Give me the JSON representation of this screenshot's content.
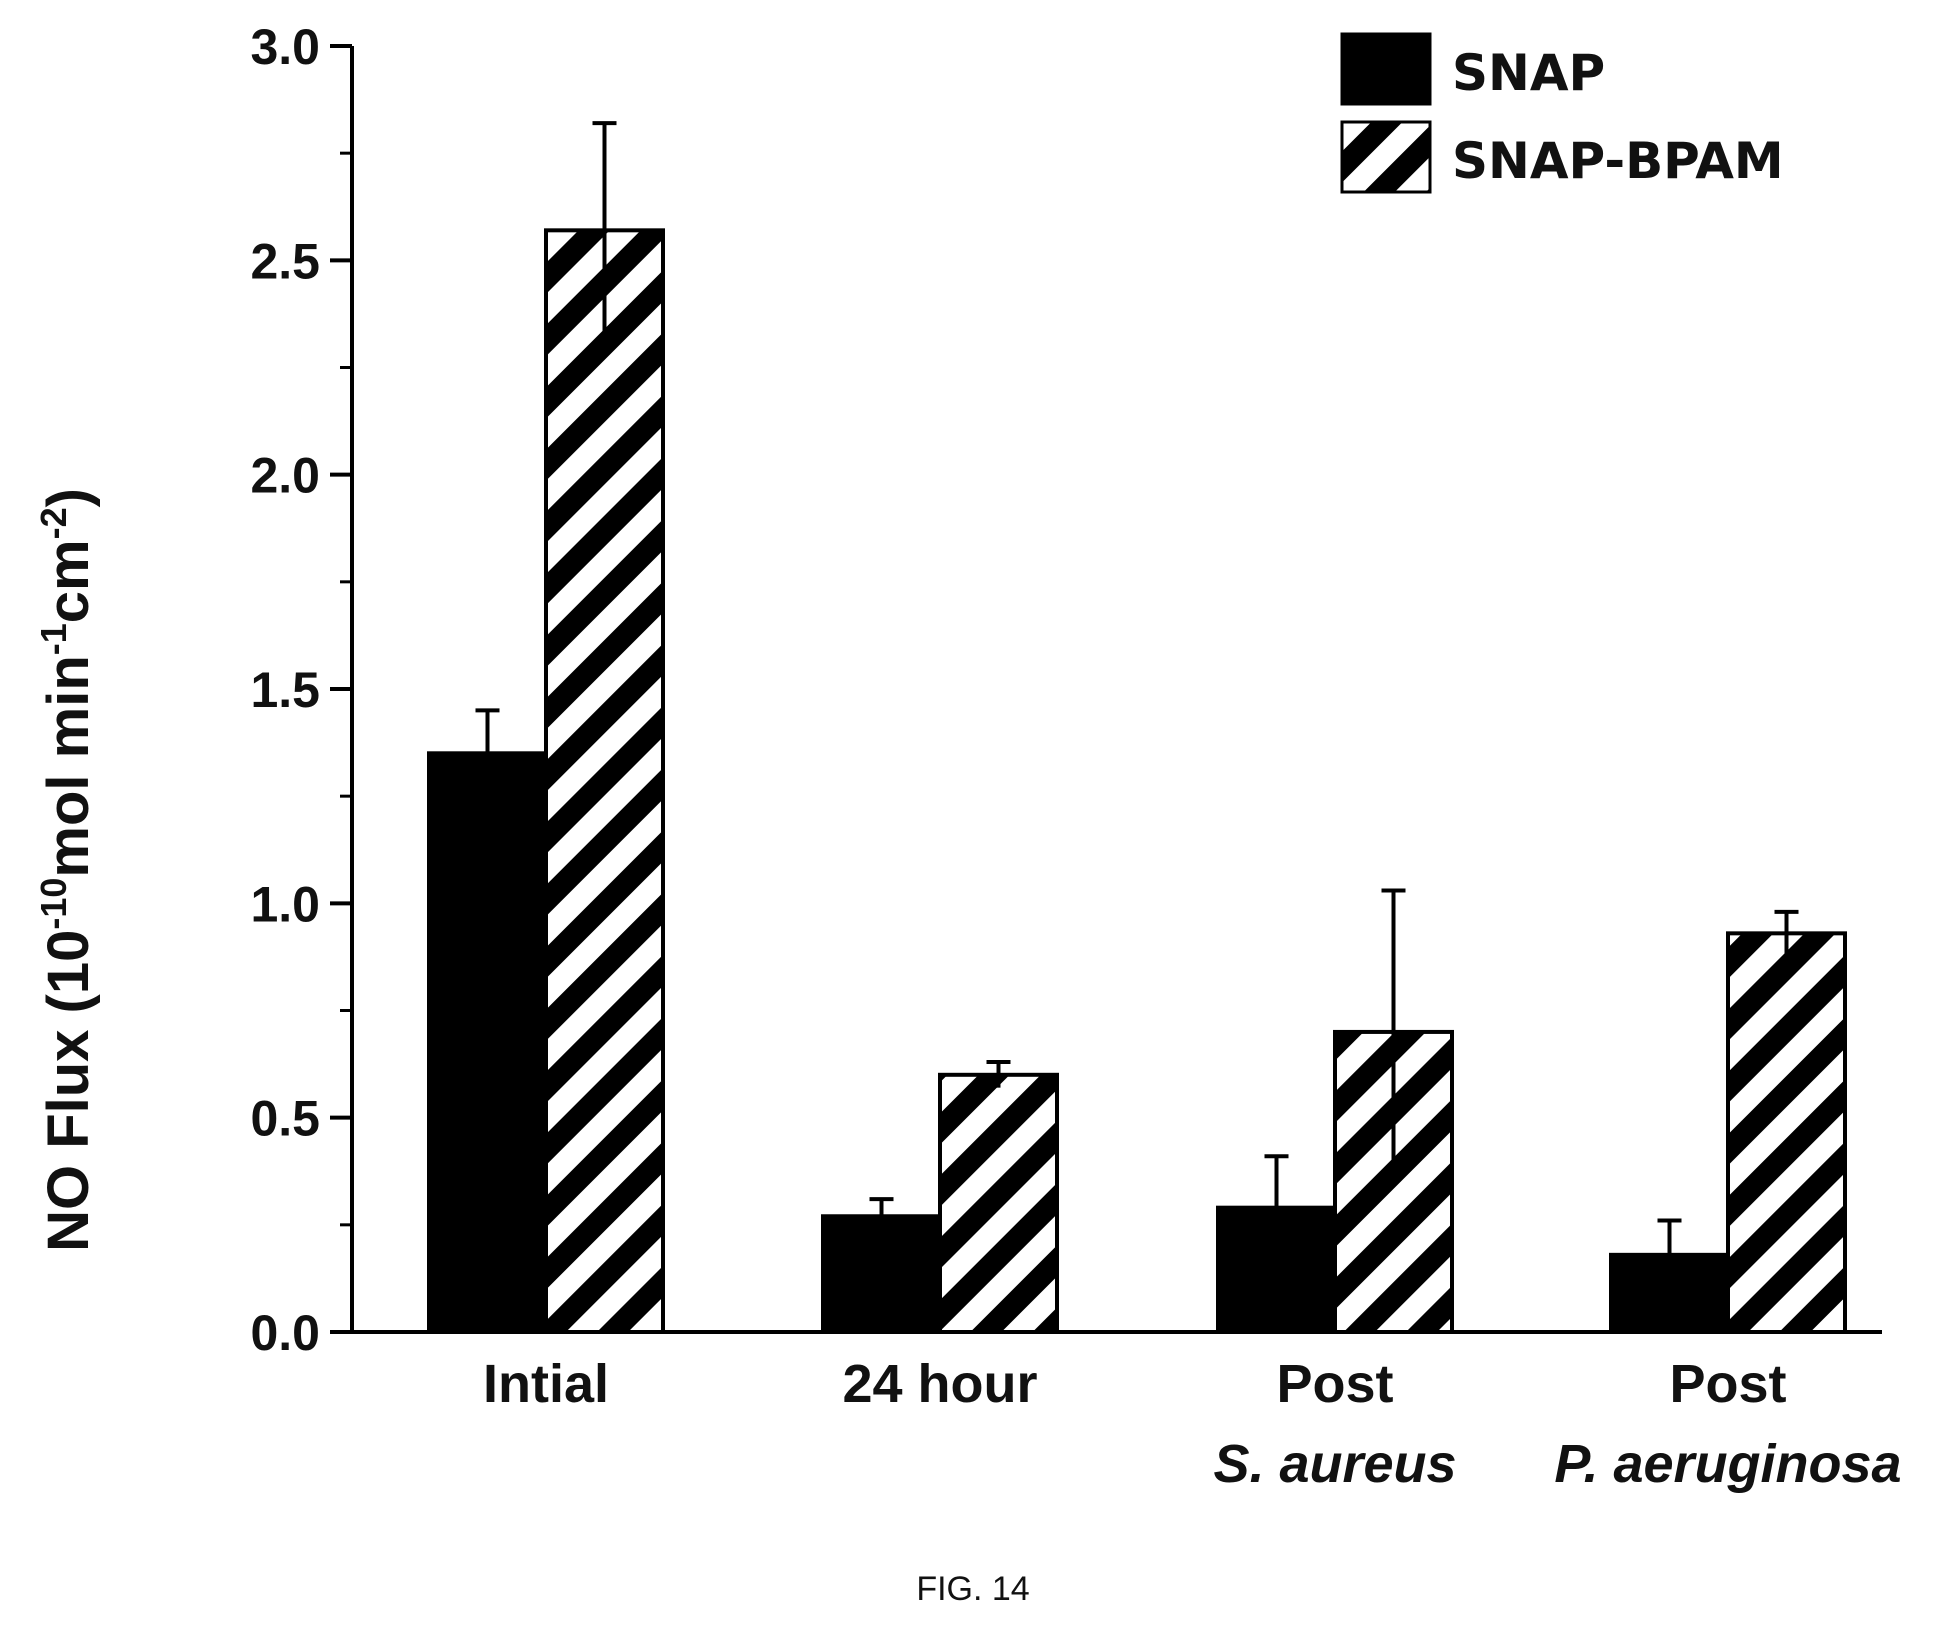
{
  "chart_data": {
    "type": "bar",
    "title": "",
    "ylabel": {
      "base": "NO Flux (10",
      "exp1": "-10",
      "mid1": "mol min",
      "exp2": "-1",
      "mid2": "cm",
      "exp3": "-2",
      "tail": ")"
    },
    "xlabel": "",
    "ylim": [
      0,
      3.0
    ],
    "yticks": [
      "0.0",
      "0.5",
      "1.0",
      "1.5",
      "2.0",
      "2.5",
      "3.0"
    ],
    "categories": [
      {
        "line1": "Intial",
        "line2": ""
      },
      {
        "line1": "24 hour",
        "line2": ""
      },
      {
        "line1": "Post",
        "line2": "S. aureus"
      },
      {
        "line1": "Post",
        "line2": "P. aeruginosa"
      }
    ],
    "series": [
      {
        "name": "SNAP",
        "values": [
          1.35,
          0.27,
          0.29,
          0.18
        ],
        "errors": [
          0.1,
          0.04,
          0.12,
          0.08
        ],
        "color": "#000000",
        "pattern": "solid"
      },
      {
        "name": "SNAP-BPAM",
        "values": [
          2.57,
          0.6,
          0.7,
          0.93
        ],
        "errors": [
          0.25,
          0.03,
          0.33,
          0.05
        ],
        "color": "#000000",
        "pattern": "hatch"
      }
    ],
    "legend_position": "top-right",
    "grid": false
  },
  "caption": "FIG. 14"
}
